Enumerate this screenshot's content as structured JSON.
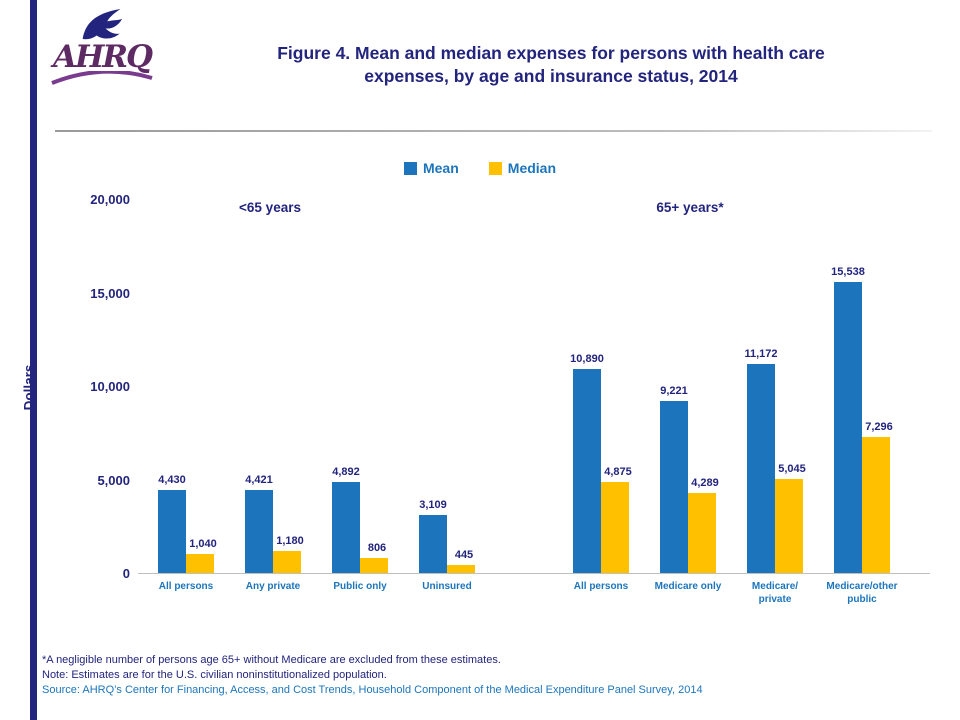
{
  "colors": {
    "mean_blue": "#1C75BC",
    "median_gold": "#FFC000",
    "navy_text": "#22247D",
    "logo_purple": "#5E2A63",
    "source_blue": "#1C75BC"
  },
  "header": {
    "logo_text": "AHRQ",
    "title": "Figure 4. Mean and median expenses for persons with health care\nexpenses, by age and insurance status, 2014"
  },
  "chart_data": {
    "type": "bar",
    "ylabel": "Dollars",
    "ylim": [
      0,
      20000
    ],
    "yticks": [
      0,
      5000,
      10000,
      15000,
      20000
    ],
    "grid": false,
    "legend_position": "top-center",
    "legend": [
      {
        "name": "Mean",
        "color": "#1C75BC"
      },
      {
        "name": "Median",
        "color": "#FFC000"
      }
    ],
    "groups": [
      {
        "label": "<65 years",
        "categories": [
          "All persons",
          "Any private",
          "Public only",
          "Uninsured"
        ],
        "series": [
          {
            "name": "Mean",
            "values": [
              4430,
              4421,
              4892,
              3109
            ]
          },
          {
            "name": "Median",
            "values": [
              1040,
              1180,
              806,
              445
            ]
          }
        ]
      },
      {
        "label": "65+ years*",
        "categories": [
          "All persons",
          "Medicare only",
          "Medicare/\nprivate",
          "Medicare/other\npublic"
        ],
        "series": [
          {
            "name": "Mean",
            "values": [
              10890,
              9221,
              11172,
              15538
            ]
          },
          {
            "name": "Median",
            "values": [
              4875,
              4289,
              5045,
              7296
            ]
          }
        ]
      }
    ]
  },
  "footnotes": {
    "line1": "*A negligible number of persons age 65+ without Medicare are excluded from these estimates.",
    "line2": "Note: Estimates are for the U.S. civilian noninstitutionalized population.",
    "line3": "Source: AHRQ’s Center for Financing, Access, and Cost Trends, Household Component of the Medical Expenditure Panel Survey, 2014"
  }
}
